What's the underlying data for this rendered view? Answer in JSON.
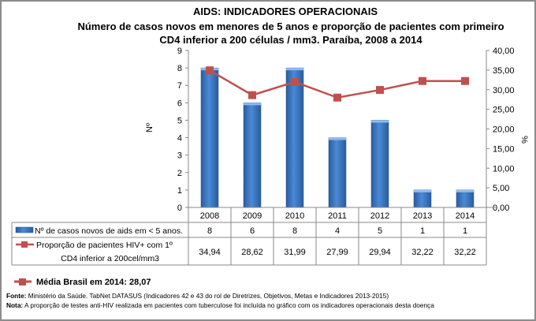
{
  "chart_data": {
    "type": "bar+line",
    "title": "AIDS: INDICADORES OPERACIONAIS",
    "subtitle_lines": [
      "Número de casos novos em menores de 5 anos e proporção de pacientes com primeiro",
      "CD4 inferior a 200 células / mm3. Paraíba, 2008 a 2014"
    ],
    "categories": [
      "2008",
      "2009",
      "2010",
      "2011",
      "2012",
      "2013",
      "2014"
    ],
    "ylabel_left": "Nº",
    "ylabel_right": "%",
    "ylim_left": [
      0,
      9
    ],
    "ylim_right": [
      0,
      40
    ],
    "yticks_left": [
      "0",
      "1",
      "2",
      "3",
      "4",
      "5",
      "6",
      "7",
      "8",
      "9"
    ],
    "yticks_right": [
      "0,00",
      "5,00",
      "10,00",
      "15,00",
      "20,00",
      "25,00",
      "30,00",
      "35,00",
      "40,00"
    ],
    "grid": false,
    "series": [
      {
        "name": "Nº de casos novos de aids em < 5 anos.",
        "type": "bar",
        "axis": "left",
        "color": "#3b78c4",
        "values": [
          8,
          6,
          8,
          4,
          5,
          1,
          1
        ],
        "labels": [
          "8",
          "6",
          "8",
          "4",
          "5",
          "1",
          "1"
        ]
      },
      {
        "name_lines": [
          "Proporção de pacientes HIV+ com 1º",
          "CD4 inferior a 200cel/mm3"
        ],
        "type": "line",
        "axis": "right",
        "color": "#c0504d",
        "values": [
          34.94,
          28.62,
          31.99,
          27.99,
          29.94,
          32.22,
          32.22
        ],
        "labels": [
          "34,94",
          "28,62",
          "31,99",
          "27,99",
          "29,94",
          "32,22",
          "32,22"
        ]
      }
    ],
    "legend_extra": "Média Brasil em 2014: 28,07",
    "footnotes": {
      "fonte_label": "Fonte:",
      "fonte_text": " Ministério da Saúde. TabNet DATASUS (Indicadores 42 e 43 do rol de Diretrizes, Objetivos, Metas e Indicadores 2013-2015)",
      "nota_label": "Nota:",
      "nota_text": " A proporção de testes anti-HIV realizada em pacientes com tuberculose foi incluída no gráfico com os indicadores operacionais desta doença"
    }
  }
}
